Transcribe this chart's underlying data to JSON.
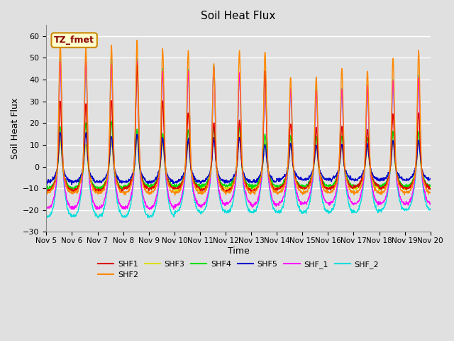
{
  "title": "Soil Heat Flux",
  "xlabel": "Time",
  "ylabel": "Soil Heat Flux",
  "ylim": [
    -30,
    65
  ],
  "yticks": [
    -30,
    -20,
    -10,
    0,
    10,
    20,
    30,
    40,
    50,
    60
  ],
  "xtick_labels": [
    "Nov 5",
    "Nov 6",
    "Nov 7",
    "Nov 8",
    "Nov 9",
    "Nov 10",
    "Nov 11",
    "Nov 12",
    "Nov 13",
    "Nov 14",
    "Nov 15",
    "Nov 16",
    "Nov 17",
    "Nov 18",
    "Nov 19",
    "Nov 20"
  ],
  "annotation_text": "TZ_fmet",
  "series_colors": {
    "SHF1": "#dd0000",
    "SHF2": "#ff8800",
    "SHF3": "#dddd00",
    "SHF4": "#00dd00",
    "SHF5": "#0000cc",
    "SHF_1": "#ff00ff",
    "SHF_2": "#00dddd"
  },
  "background_color": "#e0e0e0",
  "plot_bg_color": "#e0e0e0",
  "grid_color": "#ffffff",
  "n_days": 15,
  "dt": 0.25,
  "day_peaks": {
    "SHF1": [
      30,
      29,
      30,
      46,
      30,
      25,
      20,
      21,
      44,
      20,
      18,
      18,
      17,
      24,
      25
    ],
    "SHF2": [
      57,
      54,
      55,
      58,
      54,
      53,
      47,
      53,
      53,
      41,
      41,
      45,
      44,
      50,
      53
    ],
    "SHF3": [
      12,
      10,
      11,
      13,
      11,
      11,
      13,
      14,
      11,
      10,
      9,
      9,
      9,
      11,
      12
    ],
    "SHF4": [
      18,
      20,
      21,
      17,
      15,
      17,
      18,
      18,
      15,
      14,
      14,
      14,
      13,
      16,
      16
    ],
    "SHF5": [
      16,
      15,
      14,
      15,
      13,
      12,
      13,
      13,
      10,
      10,
      10,
      10,
      10,
      12,
      12
    ],
    "SHF_1": [
      49,
      49,
      48,
      49,
      44,
      44,
      46,
      43,
      43,
      36,
      35,
      36,
      37,
      40,
      41
    ],
    "SHF_2": [
      50,
      48,
      49,
      50,
      45,
      45,
      46,
      43,
      44,
      35,
      36,
      36,
      37,
      40,
      42
    ]
  },
  "night_troughs": {
    "SHF1": [
      -11,
      -11,
      -11,
      -10,
      -10,
      -10,
      -11,
      -11,
      -11,
      -10,
      -10,
      -10,
      -9,
      -10,
      -10
    ],
    "SHF2": [
      -12,
      -12,
      -12,
      -12,
      -12,
      -12,
      -12,
      -12,
      -12,
      -12,
      -12,
      -12,
      -12,
      -12,
      -12
    ],
    "SHF3": [
      -11,
      -11,
      -10,
      -10,
      -10,
      -11,
      -10,
      -10,
      -10,
      -10,
      -10,
      -10,
      -10,
      -10,
      -10
    ],
    "SHF4": [
      -10,
      -10,
      -10,
      -9,
      -9,
      -9,
      -9,
      -9,
      -9,
      -9,
      -9,
      -9,
      -9,
      -9,
      -9
    ],
    "SHF5": [
      -7,
      -7,
      -7,
      -7,
      -7,
      -7,
      -7,
      -7,
      -7,
      -6,
      -6,
      -6,
      -6,
      -6,
      -6
    ],
    "SHF_1": [
      -19,
      -19,
      -19,
      -19,
      -19,
      -18,
      -18,
      -17,
      -18,
      -17,
      -17,
      -17,
      -17,
      -17,
      -17
    ],
    "SHF_2": [
      -23,
      -23,
      -23,
      -23,
      -23,
      -21,
      -21,
      -21,
      -21,
      -21,
      -21,
      -21,
      -21,
      -20,
      -20
    ]
  }
}
